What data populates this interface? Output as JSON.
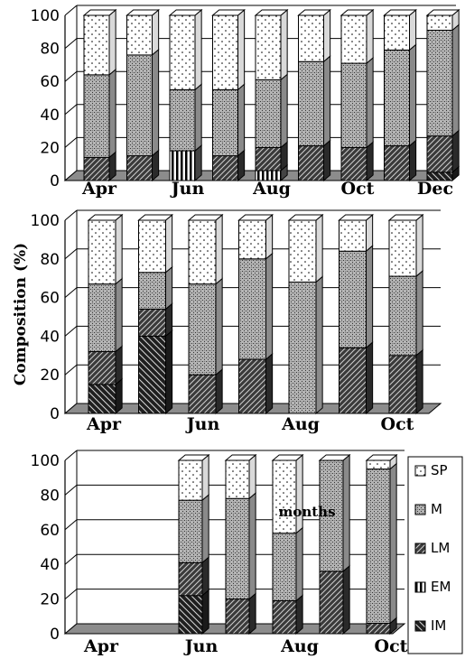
{
  "chart_data": [
    {
      "type": "bar",
      "stacked": true,
      "ylim": [
        0,
        100
      ],
      "yticks": [
        "0",
        "20",
        "40",
        "60",
        "80",
        "100"
      ],
      "xtick_labels": [
        "Apr",
        "Jun",
        "Aug",
        "Oct",
        "Dec"
      ],
      "categories": [
        "Apr",
        "May",
        "Jun",
        "Jul",
        "Aug",
        "Sep",
        "Oct",
        "Nov",
        "Dec"
      ],
      "series": [
        {
          "name": "IM",
          "values": [
            0,
            0,
            0,
            0,
            0,
            0,
            0,
            0,
            5
          ]
        },
        {
          "name": "EM",
          "values": [
            0,
            0,
            18,
            0,
            6,
            0,
            0,
            0,
            0
          ]
        },
        {
          "name": "LM",
          "values": [
            14,
            15,
            0,
            15,
            14,
            21,
            20,
            21,
            22
          ]
        },
        {
          "name": "M",
          "values": [
            50,
            61,
            37,
            40,
            41,
            51,
            51,
            58,
            64
          ]
        },
        {
          "name": "SP",
          "values": [
            36,
            24,
            45,
            45,
            39,
            28,
            29,
            21,
            9
          ]
        }
      ],
      "grid": true
    },
    {
      "type": "bar",
      "stacked": true,
      "ylim": [
        0,
        100
      ],
      "yticks": [
        "0",
        "20",
        "40",
        "60",
        "80",
        "100"
      ],
      "ylabel": "Composition (%)",
      "xtick_labels": [
        "Apr",
        "Jun",
        "Aug",
        "Oct"
      ],
      "categories": [
        "Apr",
        "May",
        "Jun",
        "Jul",
        "Aug",
        "Sep",
        "Oct"
      ],
      "series": [
        {
          "name": "IM",
          "values": [
            15,
            40,
            0,
            0,
            0,
            0,
            0
          ]
        },
        {
          "name": "EM",
          "values": [
            0,
            0,
            0,
            0,
            0,
            0,
            0
          ]
        },
        {
          "name": "LM",
          "values": [
            17,
            14,
            20,
            28,
            0,
            34,
            30
          ]
        },
        {
          "name": "M",
          "values": [
            35,
            19,
            47,
            52,
            68,
            50,
            41
          ]
        },
        {
          "name": "SP",
          "values": [
            33,
            27,
            33,
            20,
            32,
            16,
            29
          ]
        }
      ],
      "grid": true
    },
    {
      "type": "bar",
      "stacked": true,
      "ylim": [
        0,
        100
      ],
      "yticks": [
        "0",
        "20",
        "40",
        "60",
        "80",
        "100"
      ],
      "xtick_labels": [
        "Apr",
        "Jun",
        "Aug",
        "Oct"
      ],
      "categories": [
        "Apr",
        "May",
        "Jun",
        "Jul",
        "Aug",
        "Sep",
        "Oct"
      ],
      "series": [
        {
          "name": "IM",
          "values": [
            0,
            0,
            22,
            0,
            0,
            0,
            0
          ]
        },
        {
          "name": "EM",
          "values": [
            0,
            0,
            0,
            0,
            0,
            0,
            0
          ]
        },
        {
          "name": "LM",
          "values": [
            0,
            0,
            19,
            20,
            19,
            36,
            6
          ]
        },
        {
          "name": "M",
          "values": [
            0,
            0,
            36,
            58,
            39,
            64,
            89
          ]
        },
        {
          "name": "SP",
          "values": [
            0,
            0,
            23,
            22,
            42,
            0,
            5
          ]
        }
      ],
      "annotation": "months",
      "grid": true
    }
  ],
  "legend": {
    "placement": "right",
    "items": [
      {
        "label": "SP",
        "pattern": "dots"
      },
      {
        "label": "M",
        "pattern": "crosshatch"
      },
      {
        "label": "LM",
        "pattern": "dark-diagonal"
      },
      {
        "label": "EM",
        "pattern": "vertical"
      },
      {
        "label": "IM",
        "pattern": "dark-diagonal"
      }
    ]
  },
  "colors": {
    "floor": "#8c8c8c",
    "grid": "#000000",
    "bar_outline": "#000000"
  }
}
